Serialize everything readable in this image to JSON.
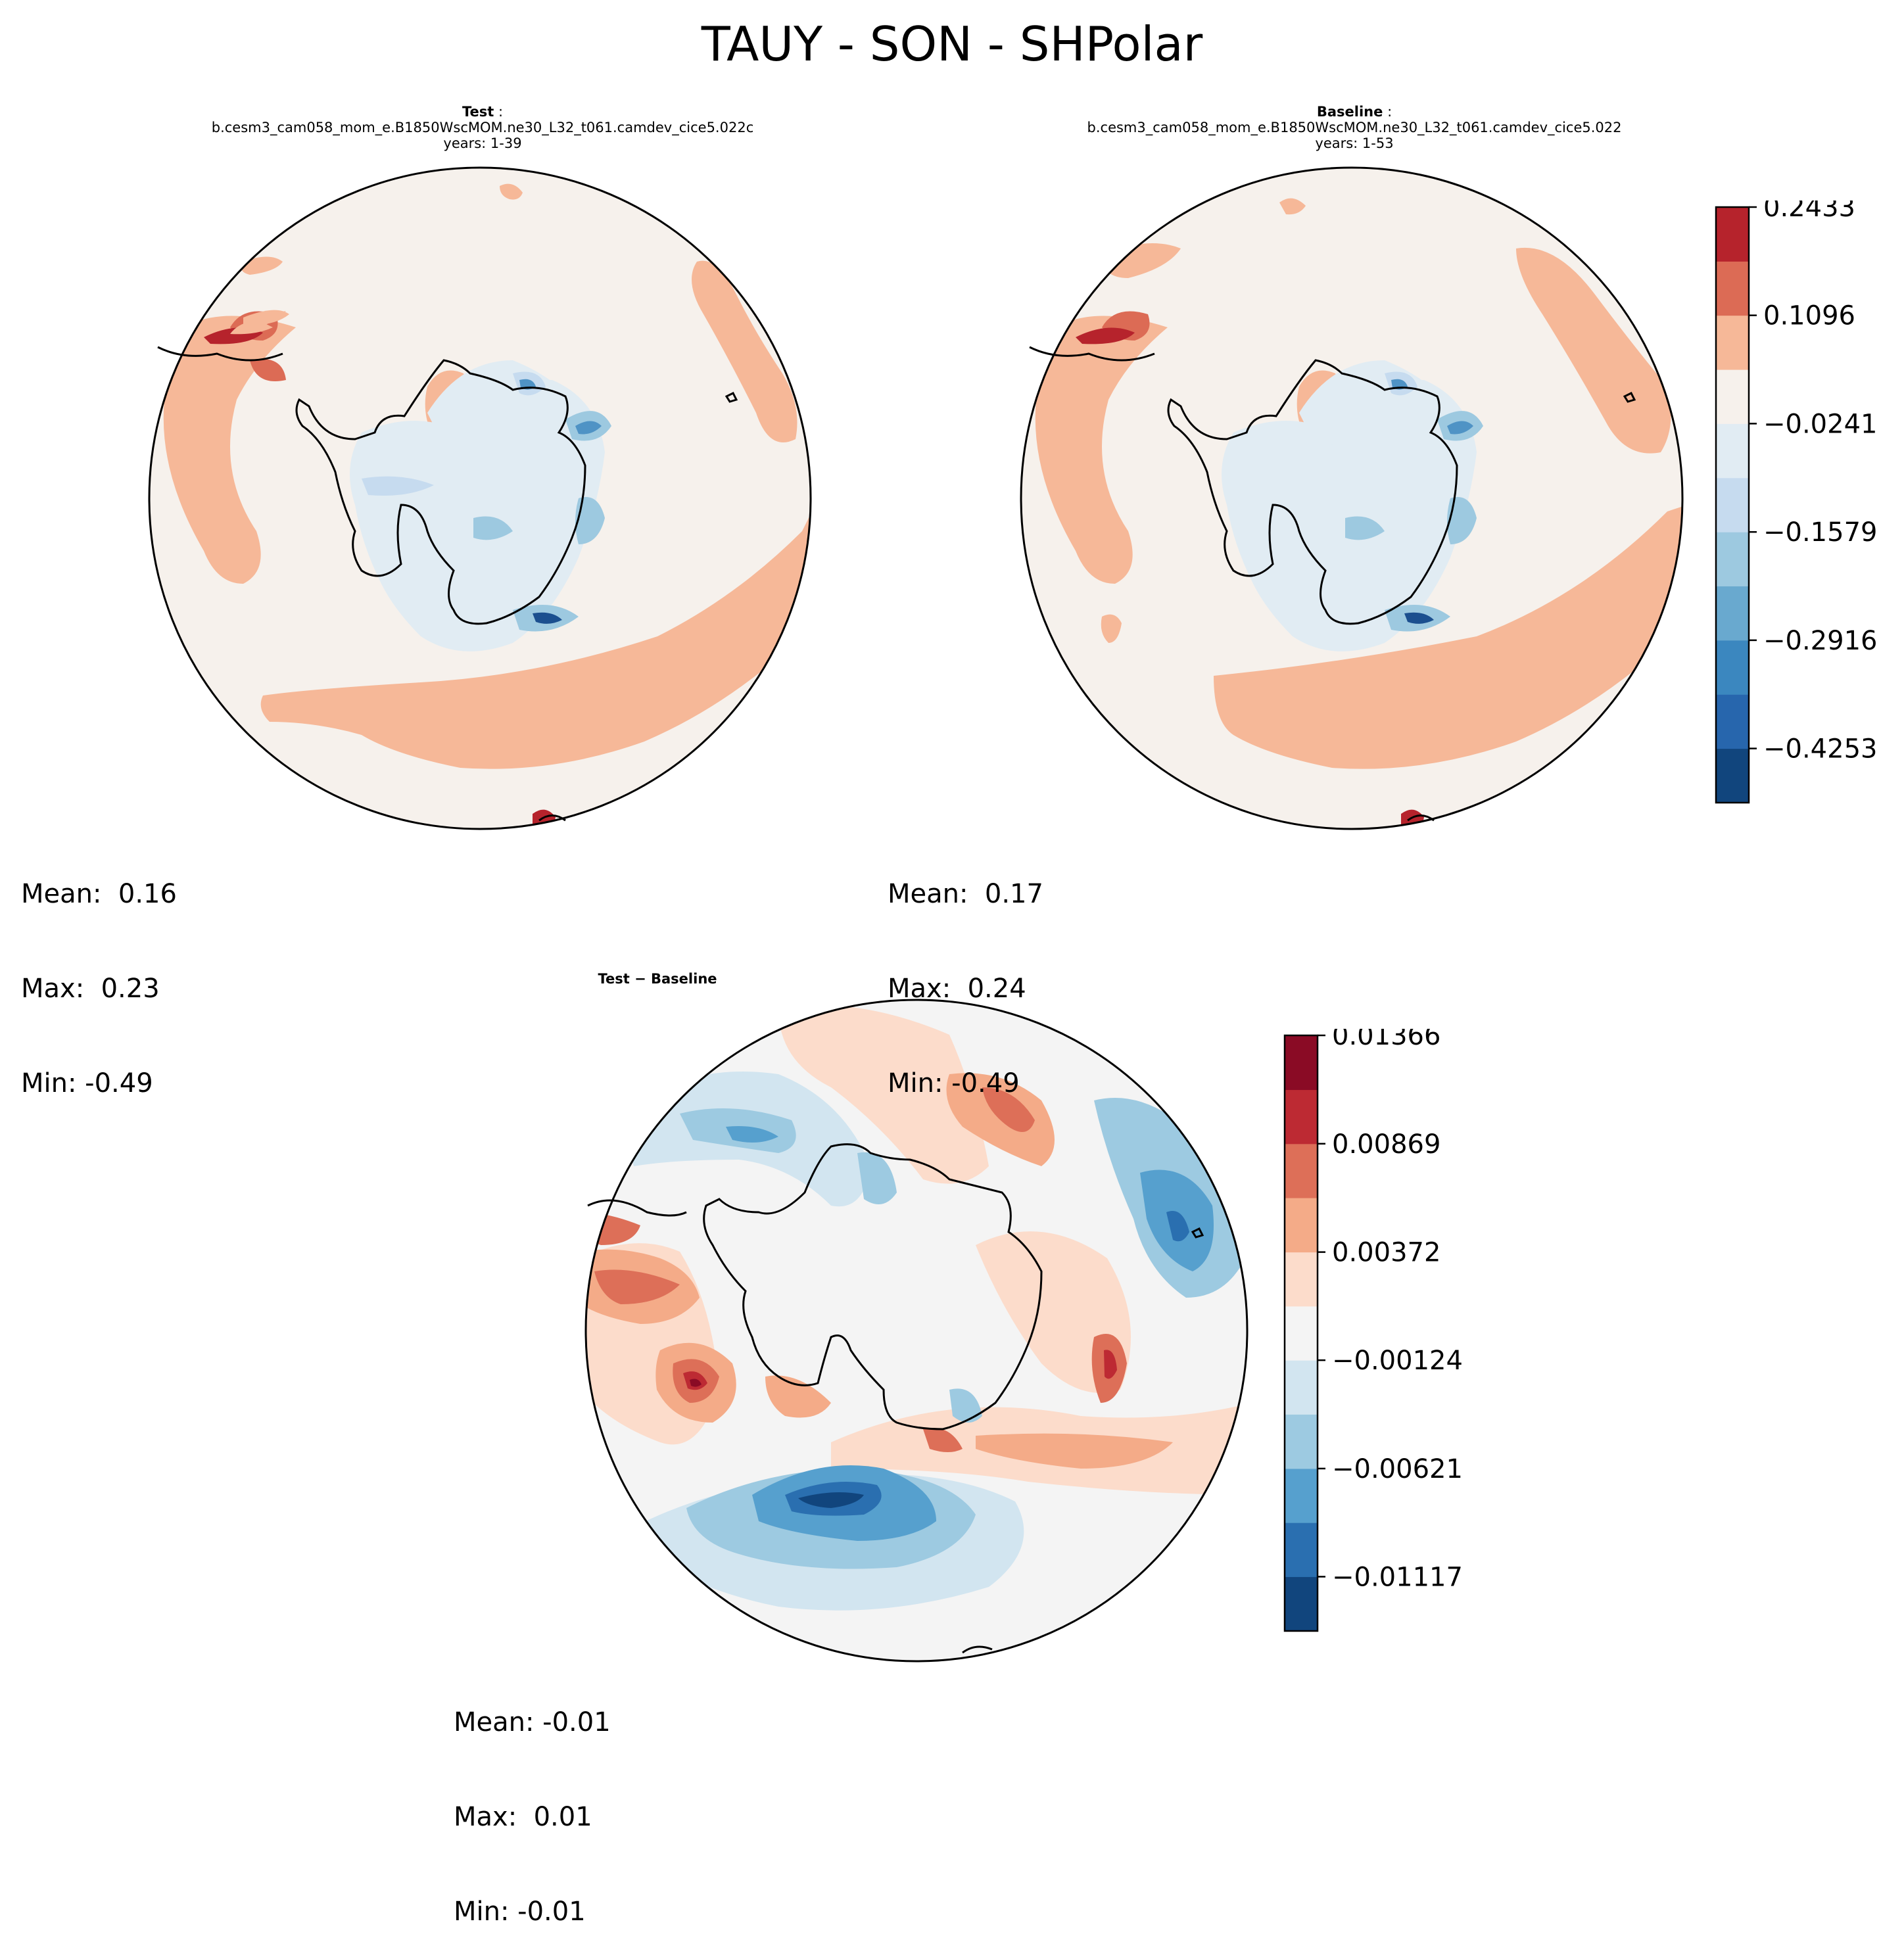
{
  "figure": {
    "title": "TAUY - SON - SHPolar"
  },
  "panels": {
    "test": {
      "label": "Test",
      "colon": ":",
      "case": "b.cesm3_cam058_mom_e.B1850WscMOM.ne30_L32_t061.camdev_cice5.022c",
      "years": "years: 1-39",
      "stats": {
        "mean": "Mean:  0.16",
        "max": "Max:  0.23",
        "min": "Min: -0.49"
      }
    },
    "baseline": {
      "label": "Baseline",
      "colon": ":",
      "case": "b.cesm3_cam058_mom_e.B1850WscMOM.ne30_L32_t061.camdev_cice5.022",
      "years": "years: 1-53",
      "stats": {
        "mean": "Mean:  0.17",
        "max": "Max:  0.24",
        "min": "Min: -0.49"
      }
    },
    "diff": {
      "label": "Test − Baseline",
      "stats": {
        "mean": "Mean: -0.01",
        "max": "Max:  0.01",
        "min": "Min: -0.01"
      }
    }
  },
  "chart_data": [
    {
      "type": "heatmap",
      "projection": "south-polar-stereographic",
      "title": "Test: b.cesm3_cam058_mom_e.B1850WscMOM.ne30_L32_t061.camdev_cice5.022c years: 1-39",
      "variable": "TAUY",
      "season": "SON",
      "region": "SHPolar",
      "mean": 0.16,
      "max": 0.23,
      "min": -0.49,
      "colorbar": "shared with Baseline"
    },
    {
      "type": "heatmap",
      "projection": "south-polar-stereographic",
      "title": "Baseline: b.cesm3_cam058_mom_e.B1850WscMOM.ne30_L32_t061.camdev_cice5.022 years: 1-53",
      "variable": "TAUY",
      "season": "SON",
      "region": "SHPolar",
      "mean": 0.17,
      "max": 0.24,
      "min": -0.49,
      "colorbar": {
        "tick_labels": [
          "0.2433",
          "0.1096",
          "−0.0241",
          "−0.1579",
          "−0.2916",
          "−0.4253"
        ],
        "tick_values": [
          0.2433,
          0.1096,
          -0.0241,
          -0.1579,
          -0.2916,
          -0.4253
        ],
        "levels": [
          -0.4922,
          -0.4253,
          -0.3585,
          -0.2916,
          -0.2247,
          -0.1579,
          -0.091,
          -0.0241,
          0.0427,
          0.1096,
          0.1764,
          0.2433
        ],
        "colors": [
          "#11457d",
          "#2766ad",
          "#3b87bf",
          "#69a9cf",
          "#9dc9e0",
          "#c6dbef",
          "#e1ecf3",
          "#f6f1ec",
          "#f6b898",
          "#dc6b55",
          "#b6232c",
          "#8c0c25"
        ]
      }
    },
    {
      "type": "heatmap",
      "projection": "south-polar-stereographic",
      "title": "Test − Baseline",
      "variable": "TAUY",
      "season": "SON",
      "region": "SHPolar",
      "mean": -0.01,
      "max": 0.01,
      "min": -0.01,
      "colorbar": {
        "tick_labels": [
          "0.01366",
          "0.00869",
          "0.00372",
          "−0.00124",
          "−0.00621",
          "−0.01117"
        ],
        "tick_values": [
          0.01366,
          0.00869,
          0.00372,
          -0.00124,
          -0.00621,
          -0.01117
        ],
        "levels": [
          -0.01366,
          -0.01117,
          -0.00869,
          -0.00621,
          -0.00372,
          -0.00124,
          0.00124,
          0.00372,
          0.00621,
          0.00869,
          0.01117,
          0.01366
        ],
        "colors": [
          "#11457d",
          "#2a6fb0",
          "#56a0ce",
          "#9dcae1",
          "#d2e5f0",
          "#f4f4f4",
          "#fcdccb",
          "#f4ab88",
          "#dd6f58",
          "#bd2a33",
          "#8a0b25"
        ]
      }
    }
  ],
  "colors": {
    "background": "#f6f1ec",
    "pos1": "#f6b898",
    "pos2": "#dc6b55",
    "pos3": "#b6232c",
    "neg1": "#e1ecf3",
    "neg2": "#c6dbef",
    "neg3": "#9dc9e0",
    "neg4": "#4f93c5",
    "neg5": "#1b4f8f"
  }
}
